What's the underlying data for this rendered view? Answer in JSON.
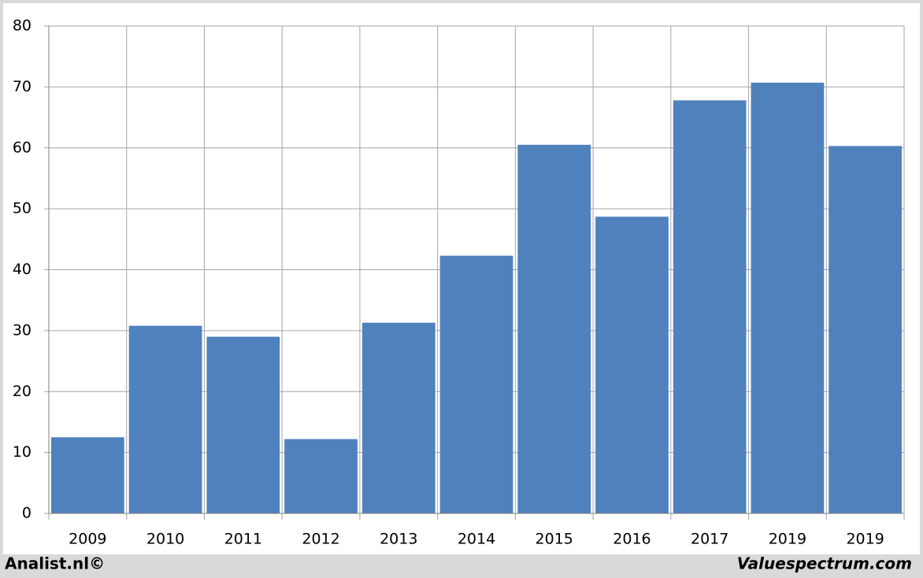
{
  "chart_data": {
    "type": "bar",
    "categories": [
      "2009",
      "2010",
      "2011",
      "2012",
      "2013",
      "2014",
      "2015",
      "2016",
      "2017",
      "2019",
      "2019"
    ],
    "values": [
      12.5,
      30.8,
      29,
      12.2,
      31.3,
      42.3,
      60.5,
      48.7,
      67.8,
      70.7,
      60.3
    ],
    "color": "#4f81bd",
    "ylim": [
      0,
      80
    ],
    "yticks": [
      0,
      10,
      20,
      30,
      40,
      50,
      60,
      70,
      80
    ],
    "grid": true,
    "credits": [
      "Analist.nl©",
      "Valuespectrum.com"
    ]
  }
}
